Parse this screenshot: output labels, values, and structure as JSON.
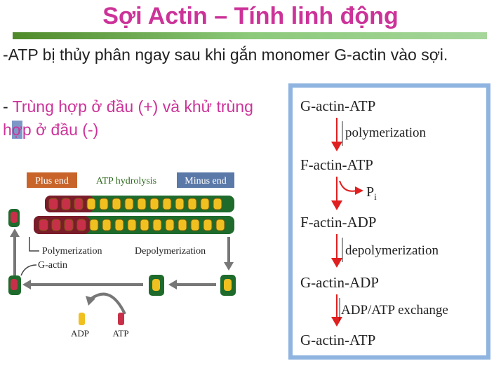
{
  "slide": {
    "title": "Sợi Actin – Tính linh động",
    "bullet1": "-ATP bị thủy phân ngay sau khi gắn monomer G-actin vào sợi.",
    "bullet2_dash": "- ",
    "bullet2_a": "Trùng hợp ở đầu (+) và khử trùng h",
    "bullet2_cursor": "ợ",
    "bullet2_b": "p ở đầu (-)"
  },
  "left_figure": {
    "plus_end_label": "Plus end",
    "atp_hydrolysis_label": "ATP hydrolysis",
    "minus_end_label": "Minus end",
    "polymerization_label": "Polymerization",
    "depolymerization_label": "Depolymerization",
    "g_actin_label": "G-actin",
    "adp_label": "ADP",
    "atp_label": "ATP",
    "colors": {
      "plus_end": "#c8642a",
      "minus_end": "#5a78a8",
      "atp_red": "#b0283c",
      "adp_yellow": "#f0c020",
      "green": "#2e7d3a"
    }
  },
  "right_figure": {
    "steps": [
      "G-actin-ATP",
      "F-actin-ATP",
      "F-actin-ADP",
      "G-actin-ADP",
      "G-actin-ATP"
    ],
    "arrow_labels": [
      "polymerization",
      "Pi",
      "depolymerization",
      "ADP/ATP exchange"
    ],
    "pi_letter": "P",
    "pi_subscript": "i",
    "colors": {
      "border": "#8fb4e0",
      "arrow": "#e02020"
    }
  }
}
